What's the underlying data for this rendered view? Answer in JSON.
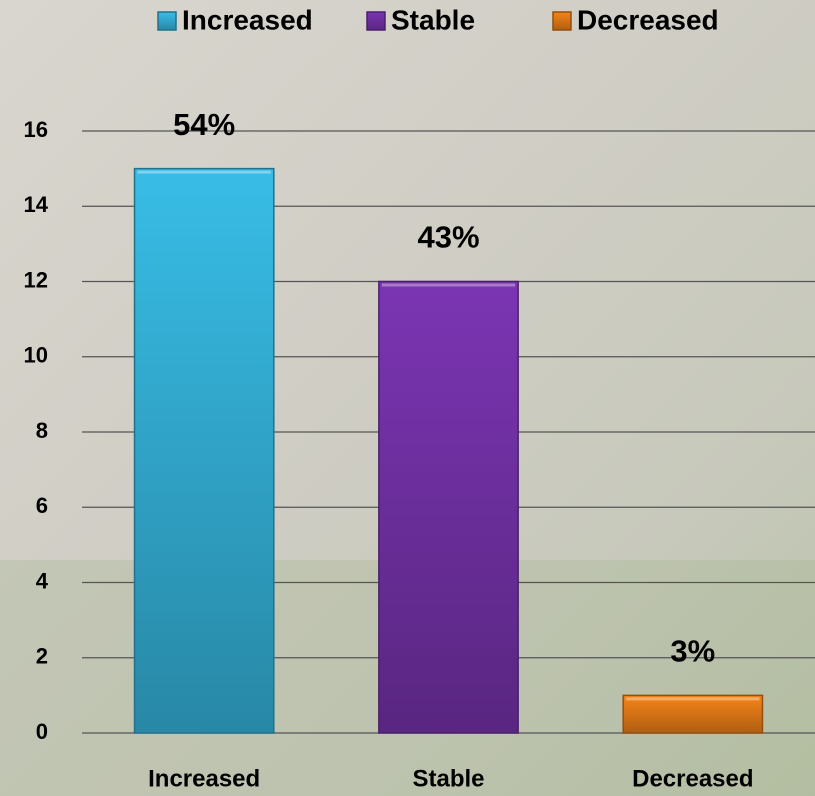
{
  "chart_data": {
    "type": "bar",
    "categories": [
      "Increased",
      "Stable",
      "Decreased"
    ],
    "values": [
      15,
      12,
      1
    ],
    "colors": [
      "#38bde6",
      "#7b35b3",
      "#f58419"
    ],
    "annotations": [
      "54%",
      "43%",
      "3%"
    ],
    "ylim": [
      0,
      16
    ],
    "yticks": [
      0,
      2,
      4,
      6,
      8,
      10,
      12,
      14,
      16
    ],
    "grid": true,
    "legend": "top"
  }
}
